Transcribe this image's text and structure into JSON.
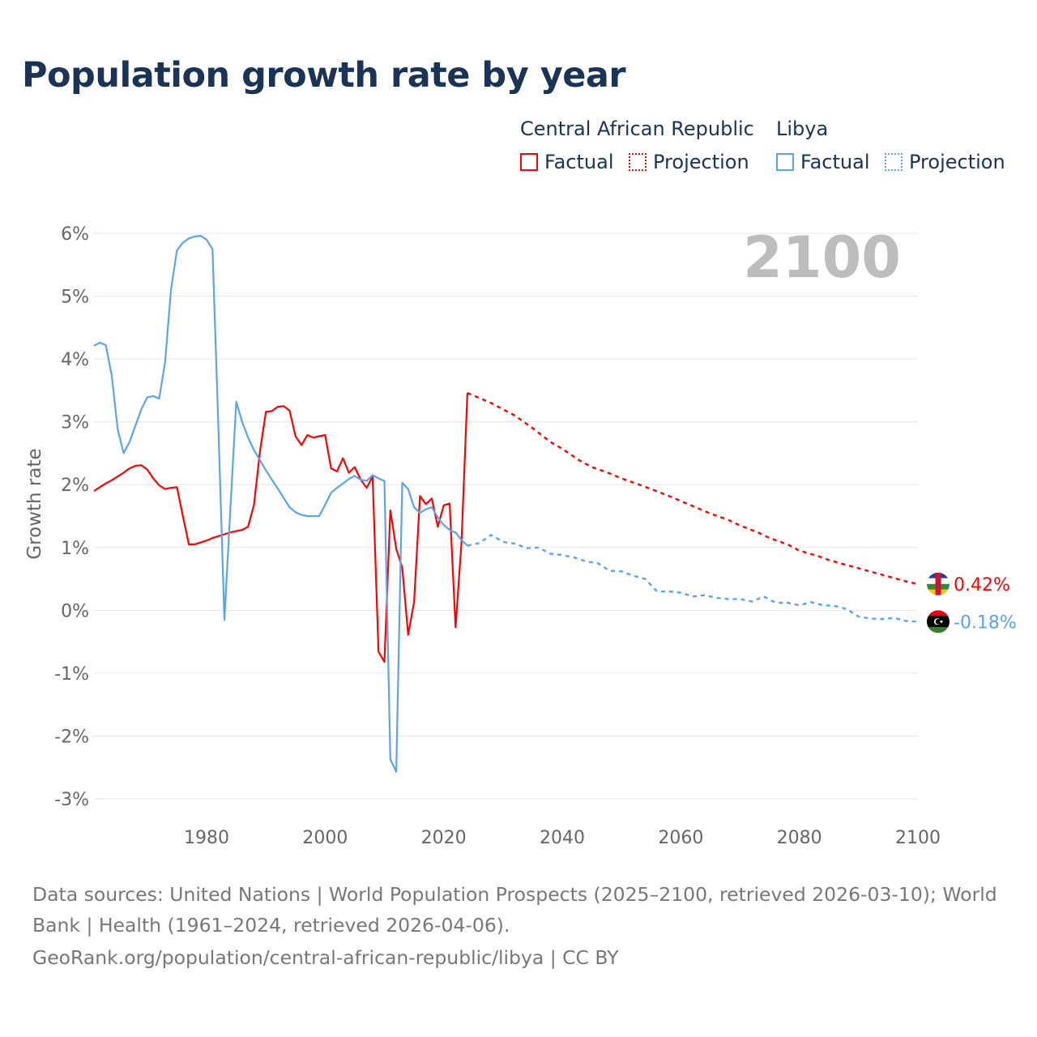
{
  "title": "Population growth rate by year",
  "legend": {
    "groups": [
      {
        "country": "Central African Republic",
        "factual": "Factual",
        "projection": "Projection",
        "color": "#ff0000"
      },
      {
        "country": "Libya",
        "factual": "Factual",
        "projection": "Projection",
        "color": "#5ba4ea"
      }
    ]
  },
  "year_label": "2100",
  "footer": {
    "line1": "Data sources: United Nations | World Population Prospects (2025–2100, retrieved 2026-03-10); World",
    "line2": "Bank | Health (1961–2024, retrieved 2026-04-06).",
    "line3": "GeoRank.org/population/central-african-republic/libya | CC BY"
  },
  "chart_data": {
    "type": "line",
    "ylabel": "Growth rate",
    "xlabel": "",
    "xlim": [
      1961,
      2100
    ],
    "ylim": [
      -3,
      6
    ],
    "xticks": [
      "1980",
      "2000",
      "2020",
      "2040",
      "2060",
      "2080",
      "2100"
    ],
    "yticks": [
      "6%",
      "5%",
      "4%",
      "3%",
      "2%",
      "1%",
      "0%",
      "-1%",
      "-2%",
      "-3%"
    ],
    "grid": true,
    "series": [
      {
        "name": "Central African Republic",
        "color": "#ff0000",
        "end_label": "0.42%",
        "flag": "central-african-republic-flag",
        "factual": {
          "start_year": 1961,
          "values": [
            1.9,
            1.96,
            2.02,
            2.07,
            2.13,
            2.19,
            2.26,
            2.3,
            2.31,
            2.24,
            2.1,
            1.99,
            1.93,
            1.95,
            1.96,
            1.5,
            1.05,
            1.05,
            1.08,
            1.11,
            1.15,
            1.18,
            1.21,
            1.24,
            1.26,
            1.28,
            1.33,
            1.68,
            2.53,
            3.16,
            3.17,
            3.24,
            3.25,
            3.18,
            2.77,
            2.63,
            2.79,
            2.75,
            2.77,
            2.79,
            2.26,
            2.21,
            2.42,
            2.19,
            2.28,
            2.08,
            1.95,
            2.13,
            -0.66,
            -0.82,
            1.59,
            0.98,
            0.68,
            -0.39,
            0.13,
            1.82,
            1.69,
            1.78,
            1.33,
            1.67,
            1.7,
            -0.27,
            1.07,
            3.46
          ]
        },
        "projection": {
          "years": [
            2024,
            2026,
            2028,
            2030,
            2032,
            2035,
            2038,
            2040,
            2043,
            2045,
            2048,
            2050,
            2053,
            2055,
            2058,
            2060,
            2063,
            2065,
            2068,
            2070,
            2073,
            2075,
            2078,
            2080,
            2083,
            2085,
            2088,
            2090,
            2093,
            2095,
            2098,
            2100
          ],
          "values": [
            3.46,
            3.38,
            3.3,
            3.2,
            3.1,
            2.9,
            2.68,
            2.57,
            2.38,
            2.28,
            2.18,
            2.1,
            2.0,
            1.93,
            1.82,
            1.74,
            1.62,
            1.54,
            1.44,
            1.35,
            1.24,
            1.15,
            1.05,
            0.95,
            0.87,
            0.8,
            0.72,
            0.67,
            0.59,
            0.54,
            0.46,
            0.42
          ]
        }
      },
      {
        "name": "Libya",
        "color": "#5ba4ea",
        "end_label": "-0.18%",
        "flag": "libya-flag",
        "factual": {
          "start_year": 1961,
          "values": [
            4.21,
            4.26,
            4.22,
            3.74,
            2.88,
            2.5,
            2.68,
            2.94,
            3.2,
            3.39,
            3.41,
            3.37,
            3.95,
            5.11,
            5.73,
            5.85,
            5.92,
            5.95,
            5.96,
            5.9,
            5.75,
            2.9,
            -0.15,
            1.6,
            3.32,
            3.0,
            2.75,
            2.55,
            2.39,
            2.23,
            2.08,
            1.94,
            1.79,
            1.64,
            1.56,
            1.52,
            1.5,
            1.5,
            1.5,
            1.68,
            1.87,
            1.95,
            2.02,
            2.09,
            2.14,
            2.08,
            2.06,
            2.15,
            2.1,
            2.06,
            -2.37,
            -2.57,
            2.03,
            1.93,
            1.64,
            1.55,
            1.61,
            1.64,
            1.48,
            1.36,
            1.28,
            1.24,
            1.12,
            1.03
          ]
        },
        "projection": {
          "years": [
            2024,
            2026,
            2028,
            2030,
            2032,
            2034,
            2036,
            2038,
            2040,
            2042,
            2044,
            2046,
            2048,
            2050,
            2052,
            2054,
            2056,
            2058,
            2060,
            2062,
            2064,
            2066,
            2068,
            2070,
            2072,
            2074,
            2076,
            2078,
            2080,
            2082,
            2084,
            2086,
            2088,
            2090,
            2092,
            2094,
            2096,
            2098,
            2100
          ],
          "values": [
            1.03,
            1.07,
            1.2,
            1.09,
            1.06,
            0.99,
            1.0,
            0.9,
            0.88,
            0.84,
            0.78,
            0.75,
            0.63,
            0.62,
            0.55,
            0.5,
            0.3,
            0.3,
            0.28,
            0.22,
            0.24,
            0.2,
            0.18,
            0.18,
            0.14,
            0.22,
            0.12,
            0.12,
            0.08,
            0.13,
            0.08,
            0.07,
            0.02,
            -0.1,
            -0.13,
            -0.14,
            -0.12,
            -0.17,
            -0.18
          ]
        }
      }
    ]
  }
}
